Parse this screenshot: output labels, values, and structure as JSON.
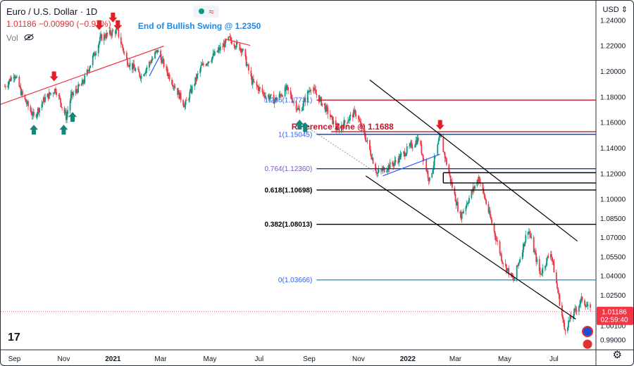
{
  "legend": {
    "symbol": "Euro / U.S. Dollar · 1D",
    "stats": "1.01186  −0.00990 (−0.97%)",
    "vol": "Vol"
  },
  "axis_currency": "USD",
  "tv_logo": "17",
  "colors": {
    "bull": "#089981",
    "bear": "#f23645",
    "red_line": "#c2182b",
    "blue_line": "#1e3a8a",
    "teal_line": "#1e9bd7",
    "fib_text_blue": "#2962ff",
    "fib_text_purple": "#7e57c2",
    "annotation_blue": "#1e88e5",
    "annotation_red": "#c2182b",
    "arrow_green": "#13877a",
    "arrow_red": "#e31e24"
  },
  "chart_data": {
    "type": "candlestick",
    "title": "Euro / U.S. Dollar",
    "ylim": [
      0.982,
      1.255
    ],
    "xlim": [
      "2020-08-15",
      "2022-08-22"
    ],
    "x_ticks": [
      {
        "label": "Sep",
        "date": "2020-09-01"
      },
      {
        "label": "Nov",
        "date": "2020-11-01"
      },
      {
        "label": "2021",
        "date": "2021-01-01"
      },
      {
        "label": "Mar",
        "date": "2021-03-01"
      },
      {
        "label": "May",
        "date": "2021-05-01"
      },
      {
        "label": "Jul",
        "date": "2021-07-01"
      },
      {
        "label": "Sep",
        "date": "2021-09-01"
      },
      {
        "label": "Nov",
        "date": "2021-11-01"
      },
      {
        "label": "2022",
        "date": "2022-01-01"
      },
      {
        "label": "Mar",
        "date": "2022-03-01"
      },
      {
        "label": "May",
        "date": "2022-05-01"
      },
      {
        "label": "Jul",
        "date": "2022-07-01"
      }
    ],
    "y_ticks": [
      "1.24000",
      "1.22000",
      "1.20000",
      "1.18000",
      "1.16000",
      "1.14000",
      "1.12000",
      "1.10000",
      "1.08500",
      "1.07000",
      "1.05500",
      "1.04000",
      "1.02500",
      "1.00100",
      "0.99000"
    ],
    "y_tick_values": [
      1.24,
      1.22,
      1.2,
      1.18,
      1.16,
      1.14,
      1.12,
      1.1,
      1.085,
      1.07,
      1.055,
      1.04,
      1.025,
      1.001,
      0.99
    ],
    "last_price": "1.01186",
    "last_price_value": 1.01186,
    "countdown": "02:59:40",
    "path": [
      [
        "2020-08-20",
        1.188
      ],
      [
        "2020-09-01",
        1.198
      ],
      [
        "2020-09-10",
        1.182
      ],
      [
        "2020-09-25",
        1.164
      ],
      [
        "2020-10-08",
        1.178
      ],
      [
        "2020-10-22",
        1.186
      ],
      [
        "2020-11-04",
        1.164
      ],
      [
        "2020-11-10",
        1.18
      ],
      [
        "2020-11-25",
        1.191
      ],
      [
        "2020-12-08",
        1.212
      ],
      [
        "2020-12-17",
        1.226
      ],
      [
        "2021-01-06",
        1.232
      ],
      [
        "2021-01-18",
        1.208
      ],
      [
        "2021-02-05",
        1.196
      ],
      [
        "2021-02-25",
        1.216
      ],
      [
        "2021-03-10",
        1.198
      ],
      [
        "2021-03-31",
        1.173
      ],
      [
        "2021-04-20",
        1.203
      ],
      [
        "2021-05-07",
        1.213
      ],
      [
        "2021-05-25",
        1.225
      ],
      [
        "2021-06-10",
        1.217
      ],
      [
        "2021-06-22",
        1.192
      ],
      [
        "2021-07-07",
        1.182
      ],
      [
        "2021-07-20",
        1.177
      ],
      [
        "2021-08-04",
        1.186
      ],
      [
        "2021-08-20",
        1.168
      ],
      [
        "2021-09-03",
        1.188
      ],
      [
        "2021-09-22",
        1.17
      ],
      [
        "2021-10-06",
        1.154
      ],
      [
        "2021-10-28",
        1.168
      ],
      [
        "2021-11-12",
        1.144
      ],
      [
        "2021-11-24",
        1.12
      ],
      [
        "2021-12-15",
        1.128
      ],
      [
        "2022-01-14",
        1.147
      ],
      [
        "2022-01-28",
        1.114
      ],
      [
        "2022-02-10",
        1.149
      ],
      [
        "2022-02-24",
        1.112
      ],
      [
        "2022-03-07",
        1.086
      ],
      [
        "2022-03-30",
        1.117
      ],
      [
        "2022-04-28",
        1.052
      ],
      [
        "2022-05-12",
        1.036
      ],
      [
        "2022-05-30",
        1.077
      ],
      [
        "2022-06-14",
        1.041
      ],
      [
        "2022-06-27",
        1.059
      ],
      [
        "2022-07-14",
        0.998
      ],
      [
        "2022-08-05",
        1.022
      ],
      [
        "2022-08-15",
        1.012
      ]
    ],
    "annotations": [
      {
        "text": "End of Bullish Swing @ 1.2350",
        "date": "2021-02-01",
        "y": 1.2352,
        "color": "annotation_blue"
      },
      {
        "text": "Reference Zone @ 1.1688",
        "date": "2021-08-10",
        "y": 1.1565,
        "color": "annotation_red"
      }
    ],
    "fib_levels": [
      {
        "label": "1.236(1.17731)",
        "value": 1.17731,
        "color": "red_line",
        "label_color": "fib_text_blue",
        "start": "2021-09-10"
      },
      {
        "label": "1(1.15045)",
        "value": 1.15045,
        "color": "blue_line",
        "label_color": "fib_text_blue",
        "start": "2021-09-10"
      },
      {
        "label": "0.764(1.12360)",
        "value": 1.1236,
        "color": "blue_line",
        "label_color": "fib_text_purple",
        "start": "2021-09-10"
      },
      {
        "label": "0.618(1.10698)",
        "value": 1.10698,
        "color": "#000000",
        "label_color": "#000000",
        "start": "2021-09-10"
      },
      {
        "label": "0.382(1.08013)",
        "value": 1.08013,
        "color": "#000000",
        "label_color": "#000000",
        "start": "2021-09-10"
      },
      {
        "label": "0(1.03666)",
        "value": 1.03666,
        "color": "teal_line",
        "label_color": "fib_text_blue",
        "start": "2021-09-10"
      }
    ],
    "zones": [
      {
        "value": 1.1525,
        "color": "red_line",
        "start": "2021-09-28"
      },
      {
        "value": 1.1205,
        "color": "#000000",
        "start": "2022-02-14"
      },
      {
        "value": 1.1125,
        "color": "#000000",
        "start": "2022-02-14"
      }
    ],
    "trend_lines": [
      {
        "points": [
          [
            "2020-08-15",
            1.174
          ],
          [
            "2021-03-05",
            1.2195
          ]
        ],
        "color": "bear"
      },
      {
        "points": [
          [
            "2021-02-15",
            1.196
          ],
          [
            "2021-03-01",
            1.213
          ]
        ],
        "color": "fib_text_blue"
      },
      {
        "points": [
          [
            "2021-12-01",
            1.118
          ],
          [
            "2022-02-10",
            1.135
          ]
        ],
        "color": "fib_text_blue"
      },
      {
        "points": [
          [
            "2021-11-15",
            1.193
          ],
          [
            "2022-07-30",
            1.067
          ]
        ],
        "color": "#000000"
      },
      {
        "points": [
          [
            "2021-11-10",
            1.118
          ],
          [
            "2022-07-28",
            1.006
          ]
        ],
        "color": "#000000"
      },
      {
        "points": [
          [
            "2021-05-20",
            1.225
          ],
          [
            "2021-06-20",
            1.22
          ]
        ],
        "color": "bear"
      }
    ],
    "up_arrows": [
      {
        "date": "2020-09-25",
        "y": 1.158
      },
      {
        "date": "2020-11-01",
        "y": 1.158
      },
      {
        "date": "2020-11-12",
        "y": 1.168
      },
      {
        "date": "2021-08-20",
        "y": 1.162
      },
      {
        "date": "2021-08-27",
        "y": 1.16
      }
    ],
    "down_arrows": [
      {
        "date": "2020-10-20",
        "y": 1.192
      },
      {
        "date": "2020-12-15",
        "y": 1.232
      },
      {
        "date": "2021-01-01",
        "y": 1.238
      },
      {
        "date": "2021-01-07",
        "y": 1.232
      },
      {
        "date": "2022-02-10",
        "y": 1.154
      }
    ]
  }
}
